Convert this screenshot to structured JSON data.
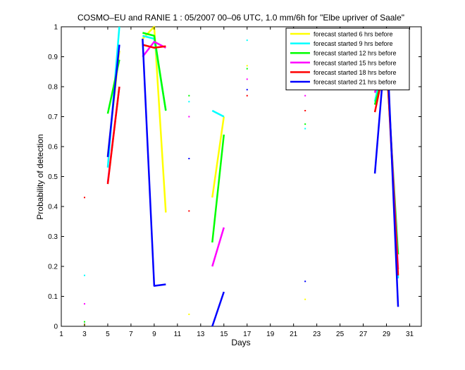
{
  "chart_data": {
    "type": "line",
    "title": "COSMO–EU and RANIE 1 : 05/2007 00–06 UTC, 1.0 mm/6h for \"Elbe upriver of Saale\"",
    "xlabel": "Days",
    "ylabel": "Probability of detection",
    "xlim": [
      1,
      32
    ],
    "ylim": [
      0,
      1
    ],
    "xticks": [
      1,
      3,
      5,
      7,
      9,
      11,
      13,
      15,
      17,
      19,
      21,
      23,
      25,
      27,
      29,
      31
    ],
    "yticks": [
      0,
      0.1,
      0.2,
      0.3,
      0.4,
      0.5,
      0.6,
      0.7,
      0.8,
      0.9,
      1
    ],
    "grid": false,
    "legend_position": "top-right",
    "series": [
      {
        "name": "forecast started 6 hrs before",
        "color": "#ffff00",
        "points": [
          [
            3,
            0.005
          ],
          [
            5,
            0.57
          ],
          [
            6,
            0.92
          ],
          [
            8,
            0.96
          ],
          [
            9,
            1.0
          ],
          [
            10,
            0.38
          ],
          [
            12,
            0.04
          ],
          [
            14,
            0.43
          ],
          [
            15,
            0.7
          ],
          [
            17,
            0.87
          ],
          [
            22,
            0.09
          ],
          [
            28,
            0.78
          ],
          [
            29,
            0.93
          ],
          [
            30,
            0.8
          ]
        ]
      },
      {
        "name": "forecast started 9 hrs before",
        "color": "#00ffff",
        "points": [
          [
            3,
            0.17
          ],
          [
            5,
            0.53
          ],
          [
            6,
            1.0
          ],
          [
            8,
            0.97
          ],
          [
            9,
            0.96
          ],
          [
            10,
            0.72
          ],
          [
            12,
            0.75
          ],
          [
            14,
            0.72
          ],
          [
            15,
            0.7
          ],
          [
            17,
            0.955
          ],
          [
            22,
            0.66
          ],
          [
            28,
            0.75
          ],
          [
            29,
            0.93
          ],
          [
            30,
            0.16
          ]
        ]
      },
      {
        "name": "forecast started 12 hrs before",
        "color": "#00ff00",
        "points": [
          [
            3,
            0.015
          ],
          [
            5,
            0.71
          ],
          [
            6,
            0.89
          ],
          [
            8,
            0.98
          ],
          [
            9,
            0.97
          ],
          [
            10,
            0.72
          ],
          [
            12,
            0.77
          ],
          [
            14,
            0.28
          ],
          [
            15,
            0.64
          ],
          [
            17,
            0.86
          ],
          [
            22,
            0.675
          ],
          [
            28,
            0.74
          ],
          [
            29,
            0.88
          ],
          [
            30,
            0.24
          ]
        ]
      },
      {
        "name": "forecast started 15 hrs before",
        "color": "#ff00ff",
        "points": [
          [
            3,
            0.075
          ],
          [
            5,
            0.48
          ],
          [
            6,
            0.8
          ],
          [
            8,
            0.9
          ],
          [
            9,
            0.95
          ],
          [
            10,
            0.93
          ],
          [
            12,
            0.7
          ],
          [
            14,
            0.2
          ],
          [
            15,
            0.33
          ],
          [
            17,
            0.825
          ],
          [
            22,
            0.77
          ],
          [
            28,
            0.78
          ],
          [
            29,
            0.91
          ],
          [
            30,
            0.19
          ]
        ]
      },
      {
        "name": "forecast started 18 hrs before",
        "color": "#ff0000",
        "points": [
          [
            3,
            0.43
          ],
          [
            5,
            0.475
          ],
          [
            6,
            0.8
          ],
          [
            8,
            0.94
          ],
          [
            9,
            0.93
          ],
          [
            10,
            0.935
          ],
          [
            12,
            0.385
          ],
          [
            17,
            0.77
          ],
          [
            22,
            0.72
          ],
          [
            28,
            0.715
          ],
          [
            29,
            0.9
          ],
          [
            30,
            0.17
          ]
        ]
      },
      {
        "name": "forecast started 21 hrs before",
        "color": "#0000ff",
        "points": [
          [
            5,
            0.565
          ],
          [
            6,
            0.94
          ],
          [
            8,
            0.96
          ],
          [
            9,
            0.135
          ],
          [
            10,
            0.14
          ],
          [
            12,
            0.56
          ],
          [
            14,
            0.0
          ],
          [
            15,
            0.115
          ],
          [
            17,
            0.79
          ],
          [
            22,
            0.15
          ],
          [
            28,
            0.51
          ],
          [
            29,
            0.98
          ],
          [
            30,
            0.065
          ]
        ]
      }
    ]
  }
}
